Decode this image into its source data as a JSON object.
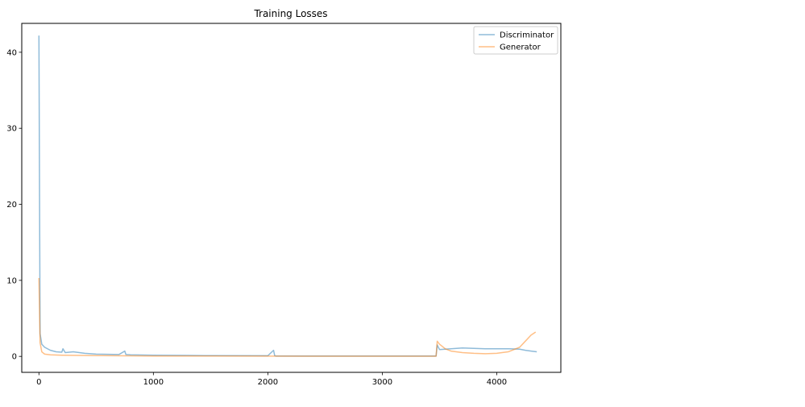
{
  "chart_data": {
    "type": "line",
    "title": "Training Losses",
    "xlabel": "",
    "ylabel": "",
    "xlim": [
      -150,
      4560
    ],
    "ylim": [
      -2.1,
      43.8
    ],
    "xticks": [
      0,
      1000,
      2000,
      3000,
      4000
    ],
    "yticks": [
      0,
      10,
      20,
      30,
      40
    ],
    "grid": false,
    "legend": "top-right",
    "series": [
      {
        "name": "Discriminator",
        "color": "#1f77b4",
        "x": [
          0,
          10,
          25,
          50,
          100,
          150,
          200,
          210,
          230,
          300,
          400,
          500,
          700,
          750,
          760,
          800,
          1000,
          1300,
          1500,
          2000,
          2050,
          2060,
          2070,
          2500,
          3000,
          3470,
          3480,
          3500,
          3600,
          3700,
          3800,
          3900,
          4000,
          4100,
          4200,
          4250,
          4300,
          4350
        ],
        "y": [
          42.2,
          3.0,
          1.6,
          1.2,
          0.8,
          0.6,
          0.55,
          1.0,
          0.5,
          0.6,
          0.4,
          0.3,
          0.25,
          0.7,
          0.25,
          0.2,
          0.15,
          0.12,
          0.1,
          0.08,
          0.8,
          0.1,
          0.05,
          0.05,
          0.05,
          0.05,
          1.5,
          0.9,
          1.0,
          1.1,
          1.05,
          1.0,
          1.0,
          1.0,
          0.95,
          0.8,
          0.7,
          0.6
        ]
      },
      {
        "name": "Generator",
        "color": "#ff7f0e",
        "x": [
          0,
          10,
          25,
          50,
          100,
          200,
          500,
          1000,
          1500,
          2000,
          3000,
          3470,
          3480,
          3500,
          3550,
          3600,
          3700,
          3800,
          3900,
          4000,
          4100,
          4200,
          4250,
          4300,
          4340
        ],
        "y": [
          10.3,
          1.8,
          0.6,
          0.3,
          0.2,
          0.15,
          0.1,
          0.05,
          0.05,
          0.03,
          0.02,
          0.02,
          2.0,
          1.6,
          1.0,
          0.7,
          0.5,
          0.4,
          0.35,
          0.4,
          0.6,
          1.2,
          2.0,
          2.8,
          3.2
        ]
      }
    ]
  }
}
